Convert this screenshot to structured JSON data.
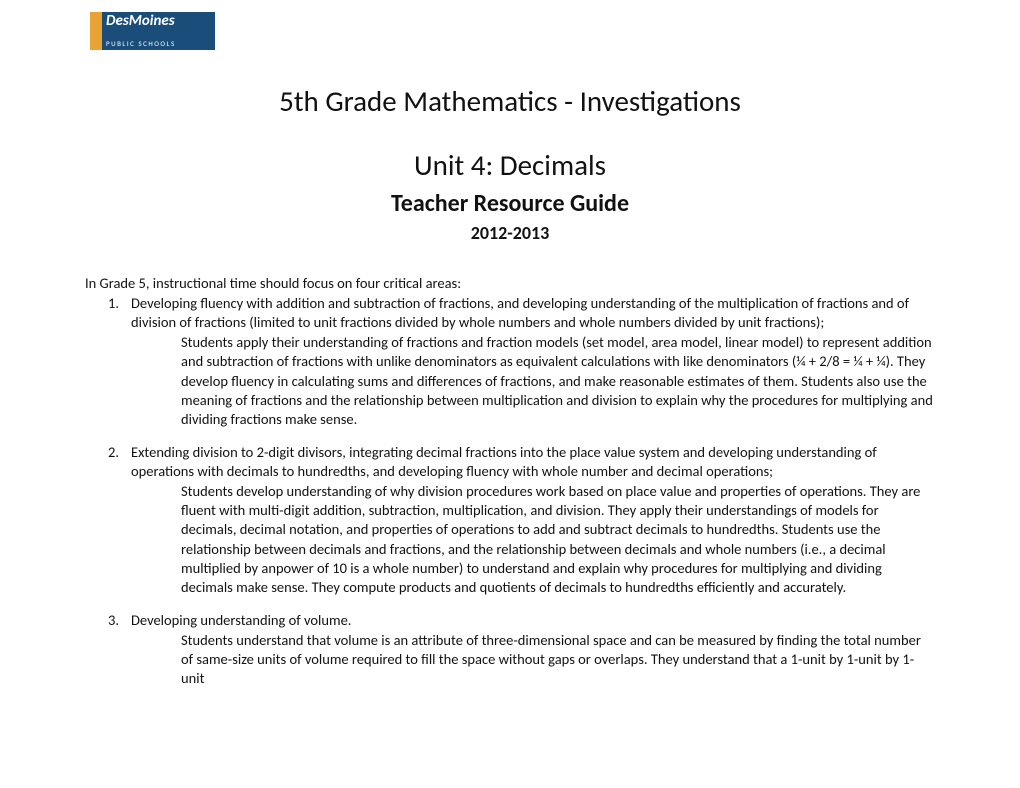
{
  "logo": {
    "main": "DesMoines",
    "sub": "PUBLIC SCHOOLS"
  },
  "titles": {
    "main": "5th Grade Mathematics - Investigations",
    "unit": "Unit 4: Decimals",
    "guide": "Teacher Resource Guide",
    "year": "2012-2013"
  },
  "intro": "In Grade 5, instructional time should focus on four critical areas:",
  "items": [
    {
      "num": "1.",
      "head": "Developing fluency with addition and subtraction of fractions, and developing understanding of the multiplication of fractions and of division of fractions (limited to unit fractions divided by whole numbers and whole numbers divided by unit fractions);",
      "detail": "Students apply their understanding of fractions and fraction models (set model, area model, linear model) to represent addition and subtraction of fractions with unlike denominators as equivalent calculations with like denominators (¼ + 2/8 = ¼ + ¼). They develop fluency in calculating sums and differences of fractions, and make reasonable estimates of them. Students also use the meaning of fractions and the relationship between multiplication and division to explain why the procedures for multiplying and dividing fractions make sense."
    },
    {
      "num": "2.",
      "head": "Extending division to 2-digit divisors, integrating decimal fractions into the place value system and developing understanding of operations with decimals to hundredths, and developing fluency with whole number and decimal operations;",
      "detail": "Students develop understanding of why division procedures work based on place value and properties of operations. They are fluent with multi-digit addition, subtraction, multiplication, and division. They apply their understandings of models for decimals, decimal notation, and properties of operations to add and subtract decimals to hundredths. Students use the relationship between decimals and fractions, and the relationship between decimals and whole numbers (i.e., a decimal multiplied by anpower of 10 is a whole number) to understand and explain why procedures for multiplying and dividing decimals make sense. They compute products and quotients of decimals to hundredths efficiently and accurately."
    },
    {
      "num": "3.",
      "head": "Developing understanding of volume.",
      "detail": "Students understand that volume is an attribute of three-dimensional space and can be measured by finding the total number of same-size units of volume required to fill the space without gaps or overlaps. They understand that a 1-unit by 1-unit by 1-unit"
    }
  ]
}
